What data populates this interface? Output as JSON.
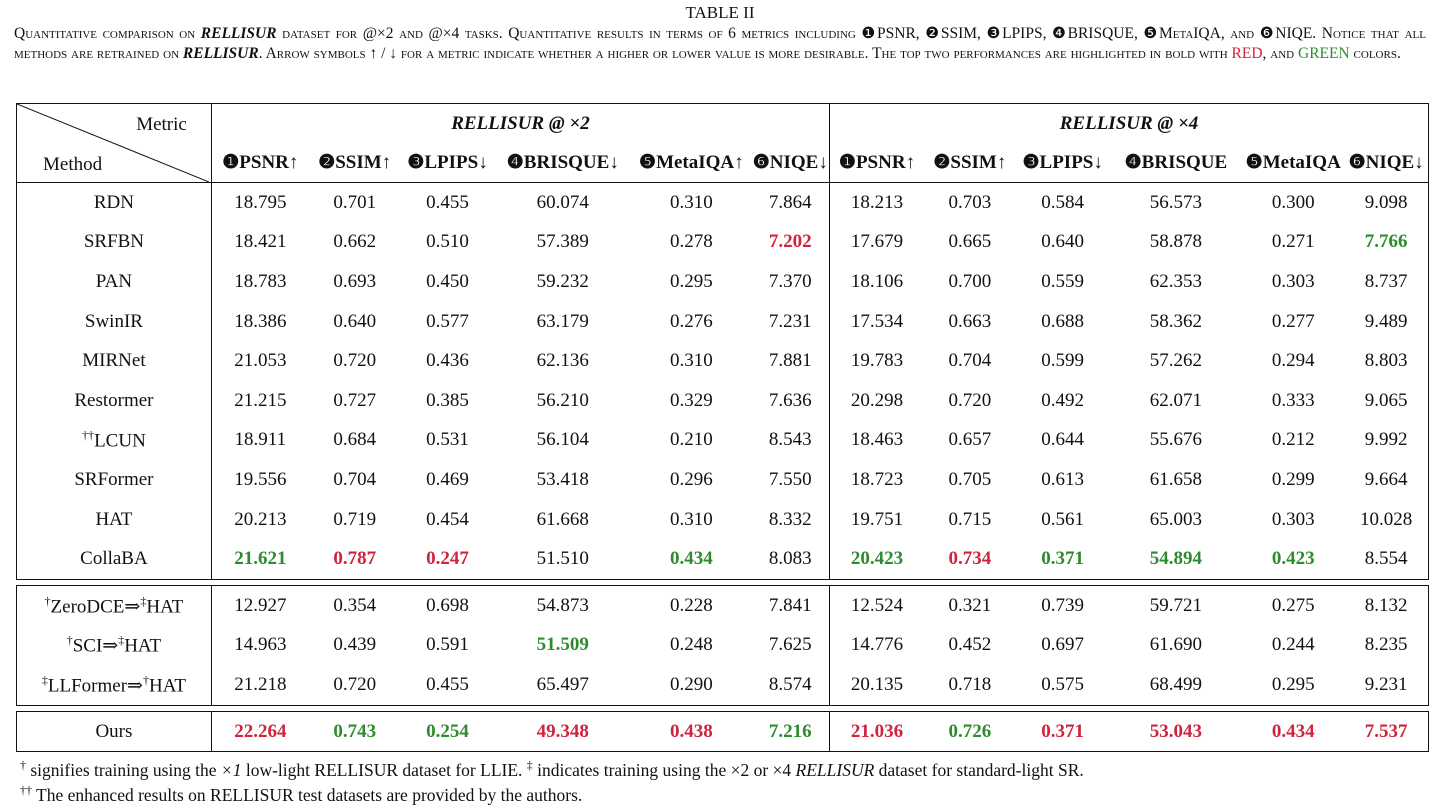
{
  "caption": {
    "title": "TABLE II",
    "parts": [
      {
        "t": "Quantitative comparison on ",
        "c": ""
      },
      {
        "t": "RELLISUR",
        "c": "it"
      },
      {
        "t": " dataset for @×2 and @×4 tasks. Quantitative results in terms of 6 metrics including ❶PSNR, ❷SSIM, ❸LPIPS, ❹BRISQUE, ❺MetaIQA, and ❻NIQE. Notice that all methods are retrained on ",
        "c": ""
      },
      {
        "t": "RELLISUR",
        "c": "it"
      },
      {
        "t": ". Arrow symbols ↑ / ↓ for a metric indicate whether a higher or lower value is more desirable. The top two performances are highlighted in bold with ",
        "c": ""
      },
      {
        "t": "RED",
        "c": "red"
      },
      {
        "t": ", and ",
        "c": ""
      },
      {
        "t": "GREEN",
        "c": "green"
      },
      {
        "t": " colors.",
        "c": ""
      }
    ]
  },
  "table": {
    "corner_metric": "Metric",
    "corner_method": "Method",
    "group_x2": "RELLISUR  @ ×2",
    "group_x4": "RELLISUR  @ ×4",
    "metrics_x2": [
      "❶PSNR↑",
      "❷SSIM↑",
      "❸LPIPS↓",
      "❹BRISQUE↓",
      "❺MetaIQA↑",
      "❻NIQE↓"
    ],
    "metrics_x4": [
      "❶PSNR↑",
      "❷SSIM↑",
      "❸LPIPS↓",
      "❹BRISQUE",
      "❺MetaIQA",
      "❻NIQE↓"
    ],
    "sections": [
      [
        {
          "method": "RDN",
          "vals": [
            "18.795",
            "0.701",
            "0.455",
            "60.074",
            "0.310",
            "7.864",
            "18.213",
            "0.703",
            "0.584",
            "56.573",
            "0.300",
            "9.098"
          ],
          "hl": [
            "",
            "",
            "",
            "",
            "",
            "",
            "",
            "",
            "",
            "",
            "",
            ""
          ]
        },
        {
          "method": "SRFBN",
          "vals": [
            "18.421",
            "0.662",
            "0.510",
            "57.389",
            "0.278",
            "7.202",
            "17.679",
            "0.665",
            "0.640",
            "58.878",
            "0.271",
            "7.766"
          ],
          "hl": [
            "",
            "",
            "",
            "",
            "",
            "red",
            "",
            "",
            "",
            "",
            "",
            "green"
          ]
        },
        {
          "method": "PAN",
          "vals": [
            "18.783",
            "0.693",
            "0.450",
            "59.232",
            "0.295",
            "7.370",
            "18.106",
            "0.700",
            "0.559",
            "62.353",
            "0.303",
            "8.737"
          ],
          "hl": [
            "",
            "",
            "",
            "",
            "",
            "",
            "",
            "",
            "",
            "",
            "",
            ""
          ]
        },
        {
          "method": "SwinIR",
          "vals": [
            "18.386",
            "0.640",
            "0.577",
            "63.179",
            "0.276",
            "7.231",
            "17.534",
            "0.663",
            "0.688",
            "58.362",
            "0.277",
            "9.489"
          ],
          "hl": [
            "",
            "",
            "",
            "",
            "",
            "",
            "",
            "",
            "",
            "",
            "",
            ""
          ]
        },
        {
          "method": "MIRNet",
          "vals": [
            "21.053",
            "0.720",
            "0.436",
            "62.136",
            "0.310",
            "7.881",
            "19.783",
            "0.704",
            "0.599",
            "57.262",
            "0.294",
            "8.803"
          ],
          "hl": [
            "",
            "",
            "",
            "",
            "",
            "",
            "",
            "",
            "",
            "",
            "",
            ""
          ]
        },
        {
          "method": "Restormer",
          "vals": [
            "21.215",
            "0.727",
            "0.385",
            "56.210",
            "0.329",
            "7.636",
            "20.298",
            "0.720",
            "0.492",
            "62.071",
            "0.333",
            "9.065"
          ],
          "hl": [
            "",
            "",
            "",
            "",
            "",
            "",
            "",
            "",
            "",
            "",
            "",
            ""
          ]
        },
        {
          "method": "LCUN",
          "sup": "††",
          "vals": [
            "18.911",
            "0.684",
            "0.531",
            "56.104",
            "0.210",
            "8.543",
            "18.463",
            "0.657",
            "0.644",
            "55.676",
            "0.212",
            "9.992"
          ],
          "hl": [
            "",
            "",
            "",
            "",
            "",
            "",
            "",
            "",
            "",
            "",
            "",
            ""
          ]
        },
        {
          "method": "SRFormer",
          "vals": [
            "19.556",
            "0.704",
            "0.469",
            "53.418",
            "0.296",
            "7.550",
            "18.723",
            "0.705",
            "0.613",
            "61.658",
            "0.299",
            "9.664"
          ],
          "hl": [
            "",
            "",
            "",
            "",
            "",
            "",
            "",
            "",
            "",
            "",
            "",
            ""
          ]
        },
        {
          "method": "HAT",
          "vals": [
            "20.213",
            "0.719",
            "0.454",
            "61.668",
            "0.310",
            "8.332",
            "19.751",
            "0.715",
            "0.561",
            "65.003",
            "0.303",
            "10.028"
          ],
          "hl": [
            "",
            "",
            "",
            "",
            "",
            "",
            "",
            "",
            "",
            "",
            "",
            ""
          ]
        },
        {
          "method": "CollaBA",
          "vals": [
            "21.621",
            "0.787",
            "0.247",
            "51.510",
            "0.434",
            "8.083",
            "20.423",
            "0.734",
            "0.371",
            "54.894",
            "0.423",
            "8.554"
          ],
          "hl": [
            "green",
            "red",
            "red",
            "",
            "green",
            "",
            "green",
            "red",
            "green",
            "green",
            "green",
            ""
          ]
        }
      ],
      [
        {
          "method": "ZeroDCE⇒",
          "sup": "†",
          "method2": "HAT",
          "sup2": "‡",
          "vals": [
            "12.927",
            "0.354",
            "0.698",
            "54.873",
            "0.228",
            "7.841",
            "12.524",
            "0.321",
            "0.739",
            "59.721",
            "0.275",
            "8.132"
          ],
          "hl": [
            "",
            "",
            "",
            "",
            "",
            "",
            "",
            "",
            "",
            "",
            "",
            ""
          ]
        },
        {
          "method": "SCI⇒",
          "sup": "†",
          "method2": "HAT",
          "sup2": "‡",
          "vals": [
            "14.963",
            "0.439",
            "0.591",
            "51.509",
            "0.248",
            "7.625",
            "14.776",
            "0.452",
            "0.697",
            "61.690",
            "0.244",
            "8.235"
          ],
          "hl": [
            "",
            "",
            "",
            "green",
            "",
            "",
            "",
            "",
            "",
            "",
            "",
            ""
          ]
        },
        {
          "method": "LLFormer⇒",
          "sup": "‡",
          "method2": "HAT",
          "sup2": "†",
          "vals": [
            "21.218",
            "0.720",
            "0.455",
            "65.497",
            "0.290",
            "8.574",
            "20.135",
            "0.718",
            "0.575",
            "68.499",
            "0.295",
            "9.231"
          ],
          "hl": [
            "",
            "",
            "",
            "",
            "",
            "",
            "",
            "",
            "",
            "",
            "",
            ""
          ]
        }
      ],
      [
        {
          "method": "Ours",
          "vals": [
            "22.264",
            "0.743",
            "0.254",
            "49.348",
            "0.438",
            "7.216",
            "21.036",
            "0.726",
            "0.371",
            "53.043",
            "0.434",
            "7.537"
          ],
          "hl": [
            "red",
            "green",
            "green",
            "red",
            "red",
            "green",
            "red",
            "green",
            "red",
            "red",
            "red",
            "red"
          ]
        }
      ]
    ]
  },
  "footnotes": {
    "f1": [
      {
        "t": "†",
        "c": "sup"
      },
      {
        "t": " signifies training using the ",
        "c": ""
      },
      {
        "t": "×1",
        "c": "i"
      },
      {
        "t": " low-light RELLISUR dataset for LLIE. ",
        "c": ""
      },
      {
        "t": "‡",
        "c": "sup"
      },
      {
        "t": " indicates training using the ×2 or ×4 ",
        "c": ""
      },
      {
        "t": "RELLISUR",
        "c": "i"
      },
      {
        "t": " dataset for standard-light SR.",
        "c": ""
      }
    ],
    "f2": [
      {
        "t": "††",
        "c": "sup"
      },
      {
        "t": " The enhanced results on RELLISUR test datasets are provided by the authors.",
        "c": ""
      }
    ]
  },
  "colors": {
    "red": "#d0243c",
    "green": "#2e8b2e"
  }
}
